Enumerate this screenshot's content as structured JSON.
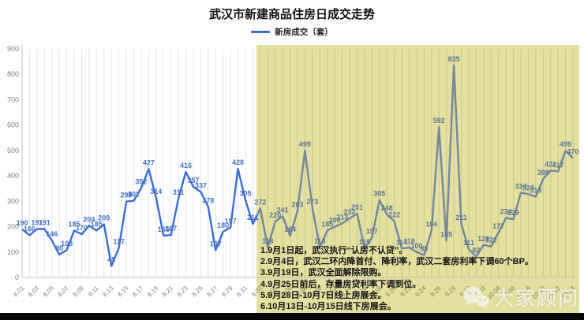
{
  "title": "武汉市新建商品住房日成交走势",
  "legend": {
    "label": "新房成交（套）"
  },
  "colors": {
    "line": "#3A6BD8",
    "label": "#4472C4",
    "muted_line": "#72879D",
    "muted_label": "#5D7694",
    "highlight": "#E4E0A0",
    "grid_left": "#DDE6F2",
    "grid_right": "#CCC78B",
    "axis": "#C4C4C4",
    "tick_text": "#7F7F7F",
    "tick_text_highlight": "#82805F"
  },
  "chart_data": {
    "type": "line",
    "title": "武汉市新建商品住房日成交走势",
    "series_name": "新房成交（套）",
    "ylim": [
      0,
      900
    ],
    "yticks": [
      0,
      100,
      200,
      300,
      400,
      500,
      600,
      700,
      800,
      900
    ],
    "xtick_every": 2,
    "grid": "vertical-only",
    "legend_position": "top-center",
    "highlight": {
      "start_date": "9.02",
      "color": "#E4E0A0",
      "note": "yellow region from early September to chart end"
    },
    "x": [
      "8.01",
      "8.02",
      "8.03",
      "8.04",
      "8.05",
      "8.06",
      "8.07",
      "8.08",
      "8.09",
      "8.10",
      "8.11",
      "8.12",
      "8.13",
      "8.14",
      "8.15",
      "8.16",
      "8.17",
      "8.18",
      "8.19",
      "8.20",
      "8.21",
      "8.22",
      "8.23",
      "8.24",
      "8.25",
      "8.26",
      "8.27",
      "8.28",
      "8.29",
      "8.30",
      "8.31",
      "9.01",
      "9.02",
      "9.03",
      "9.04",
      "9.05",
      "9.06",
      "9.07",
      "9.08",
      "9.09",
      "9.10",
      "9.11",
      "9.12",
      "9.13",
      "9.14",
      "9.15",
      "9.16",
      "9.17",
      "9.18",
      "9.19",
      "9.20",
      "9.21",
      "9.22",
      "9.23",
      "9.24",
      "9.25",
      "9.26",
      "9.27",
      "9.28",
      "9.29",
      "9.30",
      "10.01",
      "10.02",
      "10.03",
      "10.04",
      "10.05",
      "10.06",
      "10.07",
      "10.08",
      "10.09",
      "10.10",
      "10.11",
      "10.12",
      "10.13",
      "10.14"
    ],
    "values": [
      190,
      166,
      191,
      191,
      146,
      90,
      108,
      185,
      170,
      204,
      185,
      209,
      45,
      117,
      299,
      302,
      352,
      427,
      314,
      165,
      167,
      311,
      416,
      357,
      337,
      278,
      107,
      180,
      197,
      428,
      305,
      211,
      272,
      118,
      220,
      241,
      164,
      263,
      499,
      273,
      118,
      185,
      200,
      213,
      232,
      251,
      115,
      157,
      305,
      248,
      222,
      114,
      118,
      100,
      88,
      184,
      592,
      145,
      835,
      211,
      111,
      82,
      128,
      122,
      177,
      234,
      229,
      334,
      328,
      318,
      388,
      421,
      417,
      499,
      470
    ]
  },
  "annotations": {
    "lines": [
      "1.9月1日起，武汉执行“认房不认贷”。",
      "2.9月4日，武汉二环内降首付、降利率，武汉二套房利率下调60个BP。",
      "3.9月19日，武汉全面解除限购。",
      "4.9月25日前后，存量房贷利率下调到位。",
      "5.9月28日-10月7日线上房展会。",
      "6.10月13日-10月15日线下房展会。"
    ]
  },
  "watermark": {
    "icon": "wechat-icon",
    "text": "大家顾问"
  }
}
